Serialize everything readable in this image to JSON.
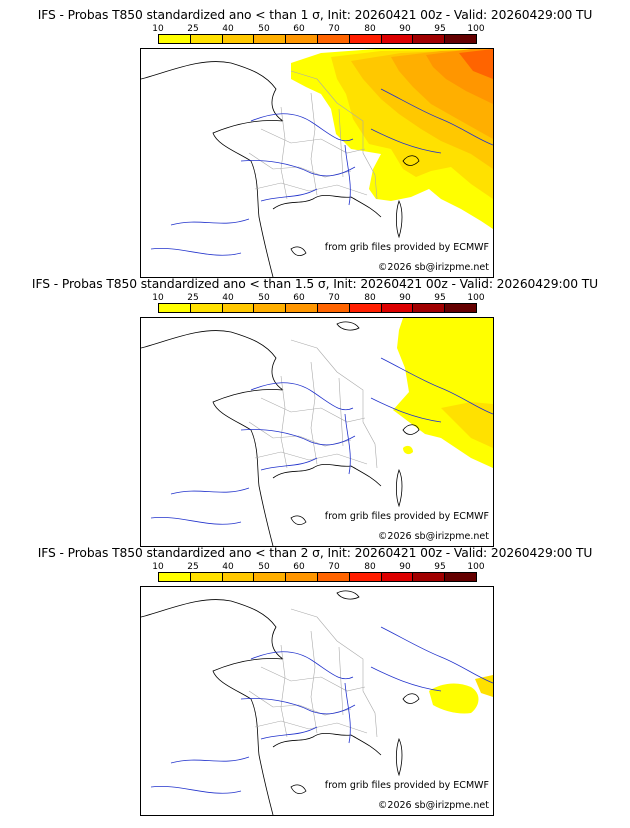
{
  "scale": {
    "labels": [
      "10",
      "25",
      "40",
      "50",
      "60",
      "70",
      "80",
      "90",
      "95",
      "100"
    ],
    "colors": [
      "#ffff00",
      "#ffe100",
      "#ffc800",
      "#ffaf00",
      "#ff9600",
      "#ff6400",
      "#ff1e00",
      "#dc0000",
      "#a00000",
      "#640000"
    ]
  },
  "panels": [
    {
      "title": "IFS - Probas T850  standardized ano < than 1 σ, Init: 20260421 00z - Valid: 20260429:00 TU",
      "source": "from grib files provided by ECMWF",
      "copyright": "©2026 sb@irizpme.net"
    },
    {
      "title": "IFS - Probas T850  standardized ano < than 1.5 σ, Init: 20260421 00z - Valid: 20260429:00 TU",
      "source": "from grib files provided by ECMWF",
      "copyright": "©2026 sb@irizpme.net"
    },
    {
      "title": "IFS - Probas T850  standardized ano < than 2 σ, Init: 20260421 00z - Valid: 20260429:00 TU",
      "source": "from grib files provided by ECMWF",
      "copyright": "©2026 sb@irizpme.net"
    }
  ]
}
